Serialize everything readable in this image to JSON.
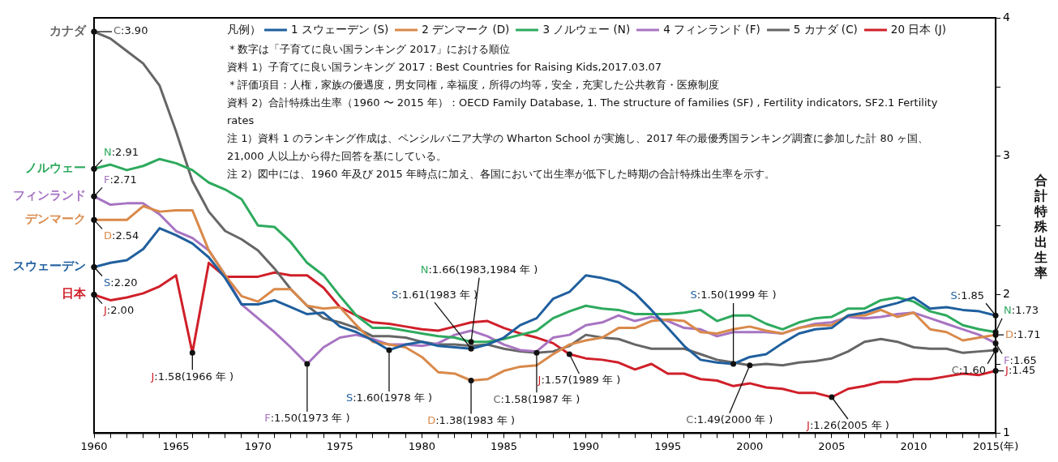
{
  "chart_data": {
    "type": "line",
    "x": [
      1960,
      1961,
      1962,
      1963,
      1964,
      1965,
      1966,
      1967,
      1968,
      1969,
      1970,
      1971,
      1972,
      1973,
      1974,
      1975,
      1976,
      1977,
      1978,
      1979,
      1980,
      1981,
      1982,
      1983,
      1984,
      1985,
      1986,
      1987,
      1988,
      1989,
      1990,
      1991,
      1992,
      1993,
      1994,
      1995,
      1996,
      1997,
      1998,
      1999,
      2000,
      2001,
      2002,
      2003,
      2004,
      2005,
      2006,
      2007,
      2008,
      2009,
      2010,
      2011,
      2012,
      2013,
      2014,
      2015
    ],
    "series": [
      {
        "name": "1 スウェーデン (S)",
        "color": "#1f5f9e",
        "values": [
          2.2,
          2.23,
          2.25,
          2.33,
          2.48,
          2.43,
          2.37,
          2.27,
          2.12,
          1.93,
          1.93,
          1.96,
          1.91,
          1.86,
          1.87,
          1.77,
          1.73,
          1.67,
          1.6,
          1.64,
          1.66,
          1.63,
          1.62,
          1.61,
          1.64,
          1.69,
          1.78,
          1.83,
          1.97,
          2.02,
          2.14,
          2.12,
          2.09,
          2.01,
          1.89,
          1.76,
          1.63,
          1.53,
          1.51,
          1.5,
          1.55,
          1.57,
          1.65,
          1.72,
          1.75,
          1.76,
          1.85,
          1.87,
          1.91,
          1.94,
          1.98,
          1.9,
          1.91,
          1.89,
          1.88,
          1.85
        ]
      },
      {
        "name": "2 デンマーク (D)",
        "color": "#d9894a",
        "values": [
          2.54,
          2.54,
          2.54,
          2.64,
          2.6,
          2.61,
          2.61,
          2.32,
          2.14,
          1.99,
          1.95,
          2.04,
          2.04,
          1.92,
          1.9,
          1.91,
          1.78,
          1.66,
          1.64,
          1.62,
          1.55,
          1.44,
          1.43,
          1.38,
          1.39,
          1.45,
          1.48,
          1.49,
          1.57,
          1.64,
          1.67,
          1.69,
          1.76,
          1.76,
          1.81,
          1.82,
          1.81,
          1.73,
          1.72,
          1.75,
          1.77,
          1.74,
          1.72,
          1.76,
          1.78,
          1.78,
          1.85,
          1.85,
          1.89,
          1.84,
          1.87,
          1.75,
          1.73,
          1.67,
          1.69,
          1.71
        ]
      },
      {
        "name": "3 ノルウェー (N)",
        "color": "#2eaa5e",
        "values": [
          2.91,
          2.94,
          2.9,
          2.93,
          2.98,
          2.95,
          2.9,
          2.81,
          2.76,
          2.69,
          2.5,
          2.49,
          2.38,
          2.23,
          2.14,
          1.99,
          1.85,
          1.76,
          1.76,
          1.74,
          1.72,
          1.7,
          1.69,
          1.66,
          1.66,
          1.68,
          1.71,
          1.74,
          1.83,
          1.88,
          1.92,
          1.9,
          1.89,
          1.86,
          1.86,
          1.86,
          1.87,
          1.89,
          1.81,
          1.85,
          1.85,
          1.79,
          1.75,
          1.8,
          1.83,
          1.84,
          1.9,
          1.9,
          1.96,
          1.98,
          1.95,
          1.88,
          1.85,
          1.78,
          1.75,
          1.73
        ]
      },
      {
        "name": "4 フィンランド (F)",
        "color": "#a774c2",
        "values": [
          2.71,
          2.65,
          2.66,
          2.66,
          2.58,
          2.46,
          2.41,
          2.32,
          2.14,
          1.93,
          1.83,
          1.73,
          1.62,
          1.5,
          1.62,
          1.69,
          1.71,
          1.68,
          1.64,
          1.64,
          1.63,
          1.65,
          1.71,
          1.74,
          1.7,
          1.64,
          1.6,
          1.59,
          1.69,
          1.71,
          1.78,
          1.8,
          1.85,
          1.81,
          1.84,
          1.81,
          1.76,
          1.75,
          1.7,
          1.73,
          1.73,
          1.73,
          1.72,
          1.76,
          1.79,
          1.8,
          1.84,
          1.83,
          1.84,
          1.86,
          1.87,
          1.83,
          1.79,
          1.75,
          1.71,
          1.65
        ]
      },
      {
        "name": "5 カナダ (C)",
        "color": "#666666",
        "values": [
          3.9,
          3.85,
          3.76,
          3.67,
          3.51,
          3.18,
          2.82,
          2.6,
          2.46,
          2.4,
          2.32,
          2.19,
          2.04,
          1.92,
          1.83,
          1.8,
          1.76,
          1.7,
          1.7,
          1.69,
          1.66,
          1.64,
          1.64,
          1.63,
          1.64,
          1.61,
          1.59,
          1.58,
          1.59,
          1.63,
          1.71,
          1.69,
          1.68,
          1.64,
          1.61,
          1.61,
          1.61,
          1.57,
          1.53,
          1.51,
          1.49,
          1.5,
          1.49,
          1.51,
          1.52,
          1.54,
          1.59,
          1.66,
          1.68,
          1.66,
          1.62,
          1.61,
          1.61,
          1.58,
          1.59,
          1.6
        ]
      },
      {
        "name": "20 日本 (J)",
        "color": "#d0202a",
        "values": [
          2.0,
          1.96,
          1.98,
          2.01,
          2.06,
          2.14,
          1.58,
          2.23,
          2.13,
          2.13,
          2.13,
          2.16,
          2.14,
          2.14,
          2.05,
          1.91,
          1.85,
          1.8,
          1.79,
          1.77,
          1.75,
          1.74,
          1.77,
          1.8,
          1.81,
          1.76,
          1.72,
          1.69,
          1.65,
          1.57,
          1.54,
          1.53,
          1.51,
          1.46,
          1.5,
          1.43,
          1.43,
          1.39,
          1.38,
          1.34,
          1.36,
          1.33,
          1.32,
          1.29,
          1.29,
          1.26,
          1.32,
          1.34,
          1.37,
          1.37,
          1.39,
          1.39,
          1.41,
          1.43,
          1.42,
          1.45
        ]
      }
    ],
    "xlim": [
      1960,
      2015
    ],
    "xticks": [
      1960,
      {
        "value": 1961,
        "label": null
      },
      {
        "value": 1962,
        "label": null
      },
      {
        "value": 1963,
        "label": null
      },
      {
        "value": 1964,
        "label": null
      },
      1965,
      {
        "value": 1966,
        "label": null
      },
      {
        "value": 1967,
        "label": null
      },
      {
        "value": 1968,
        "label": null
      },
      {
        "value": 1969,
        "label": null
      },
      1970,
      {
        "value": 1971,
        "label": null
      },
      {
        "value": 1972,
        "label": null
      },
      {
        "value": 1973,
        "label": null
      },
      {
        "value": 1974,
        "label": null
      },
      1975,
      {
        "value": 1976,
        "label": null
      },
      {
        "value": 1977,
        "label": null
      },
      {
        "value": 1978,
        "label": null
      },
      {
        "value": 1979,
        "label": null
      },
      1980,
      {
        "value": 1981,
        "label": null
      },
      {
        "value": 1982,
        "label": null
      },
      {
        "value": 1983,
        "label": null
      },
      {
        "value": 1984,
        "label": null
      },
      1985,
      {
        "value": 1986,
        "label": null
      },
      {
        "value": 1987,
        "label": null
      },
      {
        "value": 1988,
        "label": null
      },
      {
        "value": 1989,
        "label": null
      },
      1990,
      {
        "value": 1991,
        "label": null
      },
      {
        "value": 1992,
        "label": null
      },
      {
        "value": 1993,
        "label": null
      },
      {
        "value": 1994,
        "label": null
      },
      1995,
      {
        "value": 1996,
        "label": null
      },
      {
        "value": 1997,
        "label": null
      },
      {
        "value": 1998,
        "label": null
      },
      {
        "value": 1999,
        "label": null
      },
      2000,
      {
        "value": 2001,
        "label": null
      },
      {
        "value": 2002,
        "label": null
      },
      {
        "value": 2003,
        "label": null
      },
      {
        "value": 2004,
        "label": null
      },
      2005,
      {
        "value": 2006,
        "label": null
      },
      {
        "value": 2007,
        "label": null
      },
      {
        "value": 2008,
        "label": null
      },
      {
        "value": 2009,
        "label": null
      },
      2010,
      {
        "value": 2011,
        "label": null
      },
      {
        "value": 2012,
        "label": null
      },
      {
        "value": 2013,
        "label": null
      },
      {
        "value": 2014,
        "label": null
      },
      {
        "value": 2015,
        "label": "2015(年)"
      }
    ],
    "ylim": [
      1,
      4
    ],
    "yticks": [
      1,
      {
        "value": 1.5,
        "label": null
      },
      2,
      {
        "value": 2.5,
        "label": null
      },
      3,
      {
        "value": 3.5,
        "label": null
      },
      4
    ],
    "ylabel": "合計特殊出生率",
    "legend_title": "凡例）",
    "legend": "top",
    "grid": false,
    "marker": "none",
    "annotations": [
      {
        "text": "カナダ",
        "x": 1960,
        "y": 3.9
      },
      {
        "text": "ノルウェー",
        "x": 1960,
        "y": 2.91
      },
      {
        "text": "フィンランド",
        "x": 1960,
        "y": 2.71
      },
      {
        "text": "デンマーク",
        "x": 1960,
        "y": 2.54
      },
      {
        "text": "スウェーデン",
        "x": 1960,
        "y": 2.2
      },
      {
        "text": "日本",
        "x": 1960,
        "y": 2.0
      },
      {
        "text": "C:3.90",
        "x": 1960,
        "y": 3.9
      },
      {
        "text": "N:2.91",
        "x": 1960,
        "y": 2.91
      },
      {
        "text": "F:2.71",
        "x": 1960,
        "y": 2.71
      },
      {
        "text": "D:2.54",
        "x": 1960,
        "y": 2.54
      },
      {
        "text": "S:2.20",
        "x": 1960,
        "y": 2.2
      },
      {
        "text": "J:2.00",
        "x": 1960,
        "y": 2.0
      },
      {
        "text": "J:1.58(1966 年 )",
        "x": 1966,
        "y": 1.58
      },
      {
        "text": "F:1.50(1973 年 )",
        "x": 1973,
        "y": 1.5
      },
      {
        "text": "S:1.60(1978 年 )",
        "x": 1978,
        "y": 1.6
      },
      {
        "text": "S:1.61(1983 年 )",
        "x": 1983,
        "y": 1.61
      },
      {
        "text": "N:1.66(1983,1984 年 )",
        "x": 1983,
        "y": 1.66
      },
      {
        "text": "D:1.38(1983 年 )",
        "x": 1983,
        "y": 1.38
      },
      {
        "text": "C:1.58(1987 年 )",
        "x": 1987,
        "y": 1.58
      },
      {
        "text": "J:1.57(1989 年 )",
        "x": 1989,
        "y": 1.57
      },
      {
        "text": "S:1.50(1999 年 )",
        "x": 1999,
        "y": 1.5
      },
      {
        "text": "C:1.49(2000 年 )",
        "x": 2000,
        "y": 1.49
      },
      {
        "text": "J:1.26(2005 年 )",
        "x": 2005,
        "y": 1.26
      },
      {
        "text": "S:1.85",
        "x": 2015,
        "y": 1.85
      },
      {
        "text": "N:1.73",
        "x": 2015,
        "y": 1.73
      },
      {
        "text": "D:1.71",
        "x": 2015,
        "y": 1.71
      },
      {
        "text": "F:1.65",
        "x": 2015,
        "y": 1.65
      },
      {
        "text": "C:1.60",
        "x": 2015,
        "y": 1.6
      },
      {
        "text": "J:1.45",
        "x": 2015,
        "y": 1.45
      },
      "＊数字は「子育てに良い国ランキング 2017」における順位",
      "資料 1）子育てに良い国ランキング 2017：Best Countries for Raising Kids,2017.03.07",
      "＊評価項目：人権 , 家族の優遇度 , 男女同権 , 幸福度 , 所得の均等 , 安全 , 充実した公共教育・医療制度",
      "資料 2）合計特殊出生率（1960 〜 2015 年）：OECD Family Database, 1. The structure of families (SF) , Fertility indicators, SF2.1 Fertility rates",
      "注 1）資料 1 のランキング作成は、ペンシルバニア大学の Wharton School が実施し、2017 年の最優秀国ランキング調査に参加した計 80 ヶ国、21,000 人以上から得た回答を基にしている。",
      "注 2）図中には、1960 年及び 2015 年時点に加え、各国において出生率が低下した時期の合計特殊出生率を示す。"
    ]
  }
}
